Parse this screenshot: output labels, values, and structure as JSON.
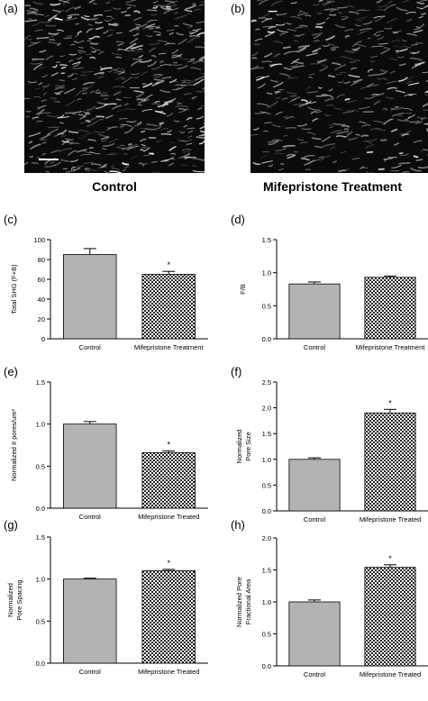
{
  "panels": {
    "a": "(a)",
    "b": "(b)",
    "c": "(c)",
    "d": "(d)",
    "e": "(e)",
    "f": "(f)",
    "g": "(g)",
    "h": "(h)"
  },
  "images": {
    "left_caption": "Control",
    "right_caption": "Mifepristone Treatment"
  },
  "colors": {
    "control_bar": "#b3b3b3",
    "treated_pattern": "checkerboard"
  },
  "chart_data": [
    {
      "panel": "(c)",
      "type": "bar",
      "categories": [
        "Control",
        "Mifepristone Treatment"
      ],
      "values": [
        85,
        65
      ],
      "errors": [
        6,
        3
      ],
      "significant": [
        false,
        true
      ],
      "ylabel": "Total SHG (F+B)",
      "ylim": [
        0,
        100
      ],
      "yticks": [
        "0",
        "20",
        "40",
        "60",
        "80",
        "100"
      ],
      "ytick_values": [
        0,
        20,
        40,
        60,
        80,
        100
      ],
      "sig_marker": "*"
    },
    {
      "panel": "(d)",
      "type": "bar",
      "categories": [
        "Control",
        "Mifepristone Treatment"
      ],
      "values": [
        0.83,
        0.93
      ],
      "errors": [
        0.03,
        0.02
      ],
      "significant": [
        false,
        false
      ],
      "ylabel": "F/B",
      "ylim": [
        0,
        1.5
      ],
      "yticks": [
        "0.0",
        "0.5",
        "1.0",
        "1.5"
      ],
      "ytick_values": [
        0,
        0.5,
        1.0,
        1.5
      ],
      "sig_marker": "*"
    },
    {
      "panel": "(e)",
      "type": "bar",
      "categories": [
        "Control",
        "Mifepristone Treated"
      ],
      "values": [
        1.0,
        0.66
      ],
      "errors": [
        0.03,
        0.02
      ],
      "significant": [
        false,
        true
      ],
      "ylabel": "Normalized # pores/um²",
      "ylim": [
        0,
        1.5
      ],
      "yticks": [
        "0.0",
        "0.5",
        "1.0",
        "1.5"
      ],
      "ytick_values": [
        0,
        0.5,
        1.0,
        1.5
      ],
      "sig_marker": "*"
    },
    {
      "panel": "(f)",
      "type": "bar",
      "categories": [
        "Control",
        "Mifepristone Treated"
      ],
      "values": [
        1.0,
        1.9
      ],
      "errors": [
        0.03,
        0.07
      ],
      "significant": [
        false,
        true
      ],
      "ylabel_lines": [
        "Normalized",
        "Pore Size"
      ],
      "ylim": [
        0,
        2.5
      ],
      "yticks": [
        "0.0",
        "0.5",
        "1.0",
        "1.5",
        "2.0",
        "2.5"
      ],
      "ytick_values": [
        0,
        0.5,
        1.0,
        1.5,
        2.0,
        2.5
      ],
      "sig_marker": "*"
    },
    {
      "panel": "(g)",
      "type": "bar",
      "categories": [
        "Control",
        "Mifepristone Treated"
      ],
      "values": [
        1.0,
        1.1
      ],
      "errors": [
        0.01,
        0.015
      ],
      "significant": [
        false,
        true
      ],
      "ylabel_lines": [
        "Normalized",
        "Pore Spacing"
      ],
      "ylim": [
        0,
        1.5
      ],
      "yticks": [
        "0.0",
        "0.5",
        "1.0",
        "1.5"
      ],
      "ytick_values": [
        0,
        0.5,
        1.0,
        1.5
      ],
      "sig_marker": "*"
    },
    {
      "panel": "(h)",
      "type": "bar",
      "categories": [
        "Control",
        "Mifepristone Treated"
      ],
      "values": [
        1.0,
        1.54
      ],
      "errors": [
        0.03,
        0.04
      ],
      "significant": [
        false,
        true
      ],
      "ylabel_lines": [
        "Normalized Pore",
        "Fractional Area"
      ],
      "ylim": [
        0,
        2.0
      ],
      "yticks": [
        "0.0",
        "0.5",
        "1.0",
        "1.5",
        "2.0"
      ],
      "ytick_values": [
        0,
        0.5,
        1.0,
        1.5,
        2.0
      ],
      "sig_marker": "*"
    }
  ]
}
